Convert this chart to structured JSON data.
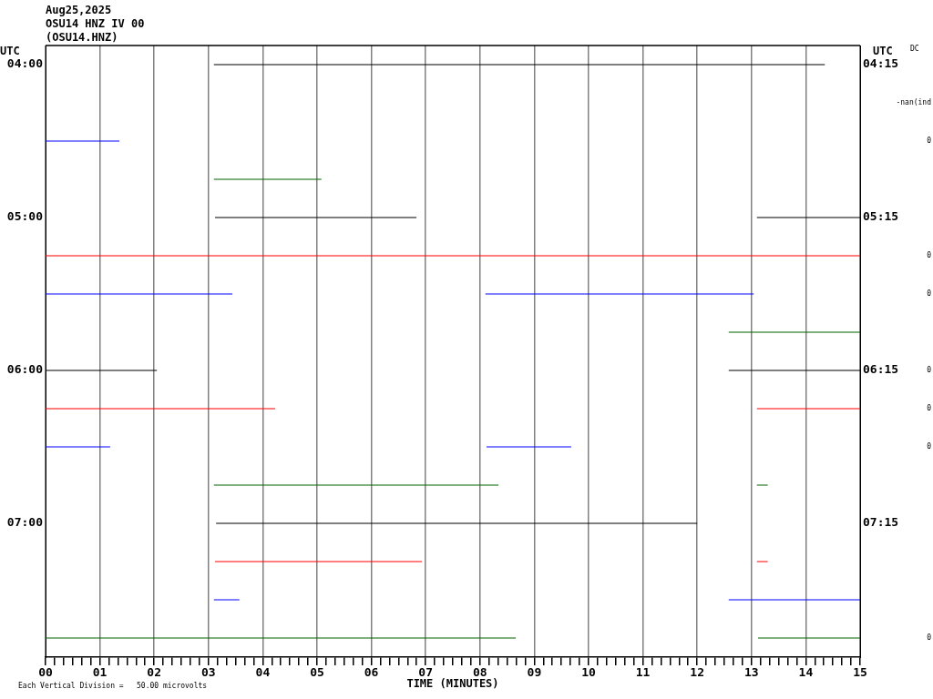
{
  "chart_data": {
    "type": "line",
    "title": "Aug25,2025",
    "subtitle": "OSU14 HNZ IV 00\n(OSU14.HNZ)",
    "xlabel": "TIME (MINUTES)",
    "ylabel": "UTC",
    "y2label": "UTC",
    "legend": false,
    "grid": "x",
    "marker": "none",
    "line_style": "solid",
    "xlim": [
      0,
      15
    ],
    "ylim": [
      7.875,
      3.875
    ],
    "y2lim": [
      8.125,
      4.125
    ],
    "xticks": [
      {
        "value": 0,
        "label": "00"
      },
      {
        "value": 0.167,
        "label": null
      },
      {
        "value": 0.333,
        "label": null
      },
      {
        "value": 0.5,
        "label": null
      },
      {
        "value": 0.667,
        "label": null
      },
      {
        "value": 0.833,
        "label": null
      },
      {
        "value": 1,
        "label": "01"
      },
      {
        "value": 1.167,
        "label": null
      },
      {
        "value": 1.333,
        "label": null
      },
      {
        "value": 1.5,
        "label": null
      },
      {
        "value": 1.667,
        "label": null
      },
      {
        "value": 1.833,
        "label": null
      },
      {
        "value": 2,
        "label": "02"
      },
      {
        "value": 2.167,
        "label": null
      },
      {
        "value": 2.333,
        "label": null
      },
      {
        "value": 2.5,
        "label": null
      },
      {
        "value": 2.667,
        "label": null
      },
      {
        "value": 2.833,
        "label": null
      },
      {
        "value": 3,
        "label": "03"
      },
      {
        "value": 3.167,
        "label": null
      },
      {
        "value": 3.333,
        "label": null
      },
      {
        "value": 3.5,
        "label": null
      },
      {
        "value": 3.667,
        "label": null
      },
      {
        "value": 3.833,
        "label": null
      },
      {
        "value": 4,
        "label": "04"
      },
      {
        "value": 4.167,
        "label": null
      },
      {
        "value": 4.333,
        "label": null
      },
      {
        "value": 4.5,
        "label": null
      },
      {
        "value": 4.667,
        "label": null
      },
      {
        "value": 4.833,
        "label": null
      },
      {
        "value": 5,
        "label": "05"
      },
      {
        "value": 5.167,
        "label": null
      },
      {
        "value": 5.333,
        "label": null
      },
      {
        "value": 5.5,
        "label": null
      },
      {
        "value": 5.667,
        "label": null
      },
      {
        "value": 5.833,
        "label": null
      },
      {
        "value": 6,
        "label": "06"
      },
      {
        "value": 6.167,
        "label": null
      },
      {
        "value": 6.333,
        "label": null
      },
      {
        "value": 6.5,
        "label": null
      },
      {
        "value": 6.667,
        "label": null
      },
      {
        "value": 6.833,
        "label": null
      },
      {
        "value": 7,
        "label": "07"
      },
      {
        "value": 7.167,
        "label": null
      },
      {
        "value": 7.333,
        "label": null
      },
      {
        "value": 7.5,
        "label": null
      },
      {
        "value": 7.667,
        "label": null
      },
      {
        "value": 7.833,
        "label": null
      },
      {
        "value": 8,
        "label": "08"
      },
      {
        "value": 8.167,
        "label": null
      },
      {
        "value": 8.333,
        "label": null
      },
      {
        "value": 8.5,
        "label": null
      },
      {
        "value": 8.667,
        "label": null
      },
      {
        "value": 8.833,
        "label": null
      },
      {
        "value": 9,
        "label": "09"
      },
      {
        "value": 9.167,
        "label": null
      },
      {
        "value": 9.333,
        "label": null
      },
      {
        "value": 9.5,
        "label": null
      },
      {
        "value": 9.667,
        "label": null
      },
      {
        "value": 9.833,
        "label": null
      },
      {
        "value": 10,
        "label": "10"
      },
      {
        "value": 10.167,
        "label": null
      },
      {
        "value": 10.333,
        "label": null
      },
      {
        "value": 10.5,
        "label": null
      },
      {
        "value": 10.667,
        "label": null
      },
      {
        "value": 10.833,
        "label": null
      },
      {
        "value": 11,
        "label": "11"
      },
      {
        "value": 11.167,
        "label": null
      },
      {
        "value": 11.333,
        "label": null
      },
      {
        "value": 11.5,
        "label": null
      },
      {
        "value": 11.667,
        "label": null
      },
      {
        "value": 11.833,
        "label": null
      },
      {
        "value": 12,
        "label": "12"
      },
      {
        "value": 12.167,
        "label": null
      },
      {
        "value": 12.333,
        "label": null
      },
      {
        "value": 12.5,
        "label": null
      },
      {
        "value": 12.667,
        "label": null
      },
      {
        "value": 12.833,
        "label": null
      },
      {
        "value": 13,
        "label": "13"
      },
      {
        "value": 13.167,
        "label": null
      },
      {
        "value": 13.333,
        "label": null
      },
      {
        "value": 13.5,
        "label": null
      },
      {
        "value": 13.667,
        "label": null
      },
      {
        "value": 13.833,
        "label": null
      },
      {
        "value": 14,
        "label": "14"
      },
      {
        "value": 14.167,
        "label": null
      },
      {
        "value": 14.333,
        "label": null
      },
      {
        "value": 14.5,
        "label": null
      },
      {
        "value": 14.667,
        "label": null
      },
      {
        "value": 14.833,
        "label": null
      },
      {
        "value": 15,
        "label": "15"
      }
    ],
    "yticks": [
      {
        "value": 4,
        "label": "04:00"
      },
      {
        "value": 5,
        "label": "05:00"
      },
      {
        "value": 6,
        "label": "06:00"
      },
      {
        "value": 7,
        "label": "07:00"
      }
    ],
    "y2ticks": [
      {
        "value": 4.25,
        "label": "04:15"
      },
      {
        "value": 5.25,
        "label": "05:15"
      },
      {
        "value": 6.25,
        "label": "06:15"
      },
      {
        "value": 7.25,
        "label": "07:15"
      }
    ],
    "series": [
      {
        "color": "#000000",
        "x": [
          3.1,
          14.35
        ],
        "values": [
          4,
          4
        ]
      },
      {
        "color": "#0000ff",
        "x": [
          0,
          1.36
        ],
        "values": [
          4.5,
          4.5
        ]
      },
      {
        "color": "#006400",
        "x": [
          3.1,
          5.08
        ],
        "values": [
          4.75,
          4.75
        ]
      },
      {
        "color": "#000000",
        "x": [
          3.12,
          6.83,
          10,
          13.1,
          15
        ],
        "values": [
          5,
          5,
          null,
          5,
          5
        ]
      },
      {
        "color": "#ff0000",
        "x": [
          0,
          15
        ],
        "values": [
          5.25,
          5.25
        ]
      },
      {
        "color": "#0000ff",
        "x": [
          0,
          3.44,
          6,
          8.1,
          13.04
        ],
        "values": [
          5.5,
          5.5,
          null,
          5.5,
          5.5
        ]
      },
      {
        "color": "#006400",
        "x": [
          12.58,
          15
        ],
        "values": [
          5.75,
          5.75
        ]
      },
      {
        "color": "#000000",
        "x": [
          0,
          2.05,
          7,
          12.58,
          15
        ],
        "values": [
          6,
          6,
          null,
          6,
          6
        ]
      },
      {
        "color": "#ff0000",
        "x": [
          0,
          4.23,
          8,
          13.1,
          15
        ],
        "values": [
          6.25,
          6.25,
          null,
          6.25,
          6.25
        ]
      },
      {
        "color": "#0000ff",
        "x": [
          0,
          1.19,
          4,
          8.12,
          9.68
        ],
        "values": [
          6.5,
          6.5,
          null,
          6.5,
          6.5
        ]
      },
      {
        "color": "#006400",
        "x": [
          3.1,
          8.34,
          10,
          13.1,
          13.3
        ],
        "values": [
          6.75,
          6.75,
          null,
          6.75,
          6.75
        ]
      },
      {
        "color": "#000000",
        "x": [
          3.14,
          12
        ],
        "values": [
          7,
          7
        ]
      },
      {
        "color": "#ff0000",
        "x": [
          3.12,
          6.93,
          10,
          13.1,
          13.3
        ],
        "values": [
          7.25,
          7.25,
          null,
          7.25,
          7.25
        ]
      },
      {
        "color": "#0000ff",
        "x": [
          3.1,
          3.57,
          8,
          12.58,
          15
        ],
        "values": [
          7.5,
          7.5,
          null,
          7.5,
          7.5
        ]
      },
      {
        "color": "#006400",
        "x": [
          0,
          8.66,
          10,
          13.12,
          15
        ],
        "values": [
          7.75,
          7.75,
          null,
          7.75,
          7.75
        ]
      }
    ],
    "annotations": [
      "DC",
      "-nan(ind",
      "0",
      "0",
      "0",
      "0",
      "0",
      "0",
      "0",
      "Each Vertical Division =   50.00 microvolts"
    ]
  }
}
